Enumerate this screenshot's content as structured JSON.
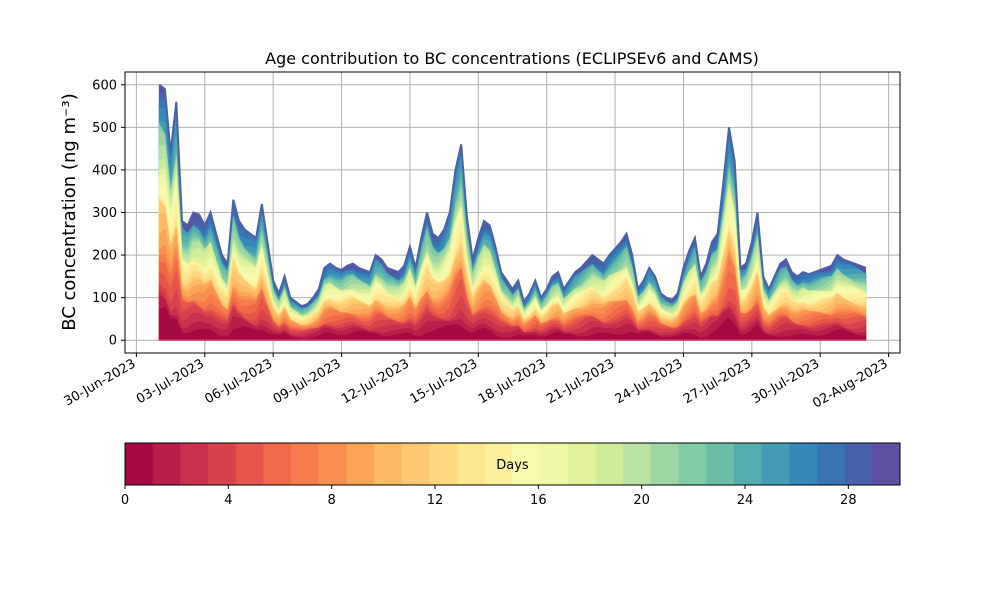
{
  "chart_data": {
    "type": "area",
    "title": "Age contribution to BC concentrations (ECLIPSEv6 and CAMS)",
    "ylabel": "BC concentration (ng m⁻³)",
    "ylim": [
      -30,
      630
    ],
    "xlim": [
      "2023-06-29T12:00",
      "2023-08-02T12:00"
    ],
    "yticks": [
      0,
      100,
      200,
      300,
      400,
      500,
      600
    ],
    "xticks": [
      "30-Jun-2023",
      "03-Jul-2023",
      "06-Jul-2023",
      "09-Jul-2023",
      "12-Jul-2023",
      "15-Jul-2023",
      "18-Jul-2023",
      "21-Jul-2023",
      "24-Jul-2023",
      "27-Jul-2023",
      "30-Jul-2023",
      "02-Aug-2023"
    ],
    "grid": true,
    "colorbar": {
      "label": "Days",
      "min": 0,
      "max": 30,
      "ticks": [
        0,
        4,
        8,
        12,
        16,
        20,
        24,
        28
      ],
      "colors": [
        "#a50b42",
        "#b81e48",
        "#c9314d",
        "#d8424d",
        "#e5554b",
        "#f06a4a",
        "#f67d4b",
        "#f9904f",
        "#fca557",
        "#fdb963",
        "#fec970",
        "#fed880",
        "#fee68f",
        "#fef19e",
        "#f7f9ad",
        "#eef8a6",
        "#e1f29b",
        "#cfec9b",
        "#b8e2a1",
        "#9dd6a4",
        "#82cca5",
        "#6bbfa6",
        "#55aead",
        "#439bb4",
        "#3688bb",
        "#3a74b3",
        "#4762aa",
        "#5e4fa2"
      ]
    },
    "total": {
      "x": [
        "2023-07-01T00:00",
        "2023-07-01T06:00",
        "2023-07-01T12:00",
        "2023-07-01T18:00",
        "2023-07-02T00:00",
        "2023-07-02T06:00",
        "2023-07-02T12:00",
        "2023-07-02T18:00",
        "2023-07-03T00:00",
        "2023-07-03T06:00",
        "2023-07-03T12:00",
        "2023-07-03T18:00",
        "2023-07-04T00:00",
        "2023-07-04T06:00",
        "2023-07-04T12:00",
        "2023-07-04T18:00",
        "2023-07-05T00:00",
        "2023-07-05T06:00",
        "2023-07-05T12:00",
        "2023-07-05T18:00",
        "2023-07-06T00:00",
        "2023-07-06T06:00",
        "2023-07-06T12:00",
        "2023-07-06T18:00",
        "2023-07-07T00:00",
        "2023-07-07T06:00",
        "2023-07-07T12:00",
        "2023-07-07T18:00",
        "2023-07-08T00:00",
        "2023-07-08T06:00",
        "2023-07-08T12:00",
        "2023-07-08T18:00",
        "2023-07-09T00:00",
        "2023-07-09T06:00",
        "2023-07-09T12:00",
        "2023-07-09T18:00",
        "2023-07-10T00:00",
        "2023-07-10T06:00",
        "2023-07-10T12:00",
        "2023-07-10T18:00",
        "2023-07-11T00:00",
        "2023-07-11T06:00",
        "2023-07-11T12:00",
        "2023-07-11T18:00",
        "2023-07-12T00:00",
        "2023-07-12T06:00",
        "2023-07-12T12:00",
        "2023-07-12T18:00",
        "2023-07-13T00:00",
        "2023-07-13T06:00",
        "2023-07-13T12:00",
        "2023-07-13T18:00",
        "2023-07-14T00:00",
        "2023-07-14T06:00",
        "2023-07-14T12:00",
        "2023-07-14T18:00",
        "2023-07-15T00:00",
        "2023-07-15T06:00",
        "2023-07-15T12:00",
        "2023-07-15T18:00",
        "2023-07-16T00:00",
        "2023-07-16T06:00",
        "2023-07-16T12:00",
        "2023-07-16T18:00",
        "2023-07-17T00:00",
        "2023-07-17T06:00",
        "2023-07-17T12:00",
        "2023-07-17T18:00",
        "2023-07-18T00:00",
        "2023-07-18T06:00",
        "2023-07-18T12:00",
        "2023-07-18T18:00",
        "2023-07-19T00:00",
        "2023-07-19T06:00",
        "2023-07-19T12:00",
        "2023-07-19T18:00",
        "2023-07-20T00:00",
        "2023-07-20T06:00",
        "2023-07-20T12:00",
        "2023-07-20T18:00",
        "2023-07-21T00:00",
        "2023-07-21T06:00",
        "2023-07-21T12:00",
        "2023-07-21T18:00",
        "2023-07-22T00:00",
        "2023-07-22T06:00",
        "2023-07-22T12:00",
        "2023-07-22T18:00",
        "2023-07-23T00:00",
        "2023-07-23T06:00",
        "2023-07-23T12:00",
        "2023-07-23T18:00",
        "2023-07-24T00:00",
        "2023-07-24T06:00",
        "2023-07-24T12:00",
        "2023-07-24T18:00",
        "2023-07-25T00:00",
        "2023-07-25T06:00",
        "2023-07-25T12:00",
        "2023-07-25T18:00",
        "2023-07-26T00:00",
        "2023-07-26T06:00",
        "2023-07-26T12:00",
        "2023-07-26T18:00",
        "2023-07-27T00:00",
        "2023-07-27T06:00",
        "2023-07-27T12:00",
        "2023-07-27T18:00",
        "2023-07-28T00:00",
        "2023-07-28T06:00",
        "2023-07-28T12:00",
        "2023-07-28T18:00",
        "2023-07-29T00:00",
        "2023-07-29T06:00",
        "2023-07-29T12:00",
        "2023-07-29T18:00",
        "2023-07-30T00:00",
        "2023-07-30T06:00",
        "2023-07-30T12:00",
        "2023-07-30T18:00",
        "2023-07-31T00:00",
        "2023-07-31T06:00",
        "2023-07-31T12:00",
        "2023-07-31T18:00",
        "2023-08-01T00:00"
      ],
      "y": [
        600,
        590,
        440,
        560,
        280,
        270,
        300,
        295,
        270,
        300,
        250,
        200,
        180,
        330,
        280,
        260,
        250,
        240,
        320,
        230,
        140,
        110,
        150,
        100,
        90,
        80,
        85,
        100,
        120,
        170,
        180,
        170,
        165,
        175,
        180,
        170,
        165,
        160,
        200,
        190,
        170,
        165,
        160,
        175,
        220,
        170,
        240,
        300,
        250,
        240,
        260,
        300,
        400,
        460,
        290,
        190,
        240,
        280,
        270,
        220,
        160,
        140,
        120,
        140,
        90,
        110,
        140,
        100,
        120,
        150,
        160,
        120,
        140,
        160,
        170,
        185,
        200,
        190,
        180,
        200,
        215,
        230,
        250,
        200,
        120,
        140,
        170,
        150,
        110,
        100,
        95,
        110,
        170,
        210,
        240,
        150,
        180,
        230,
        250,
        370,
        500,
        420,
        170,
        180,
        230,
        300,
        150,
        120,
        150,
        180,
        190,
        160,
        150,
        160,
        155,
        160,
        165,
        170,
        175,
        200,
        190,
        185,
        180,
        175,
        170
      ]
    }
  }
}
